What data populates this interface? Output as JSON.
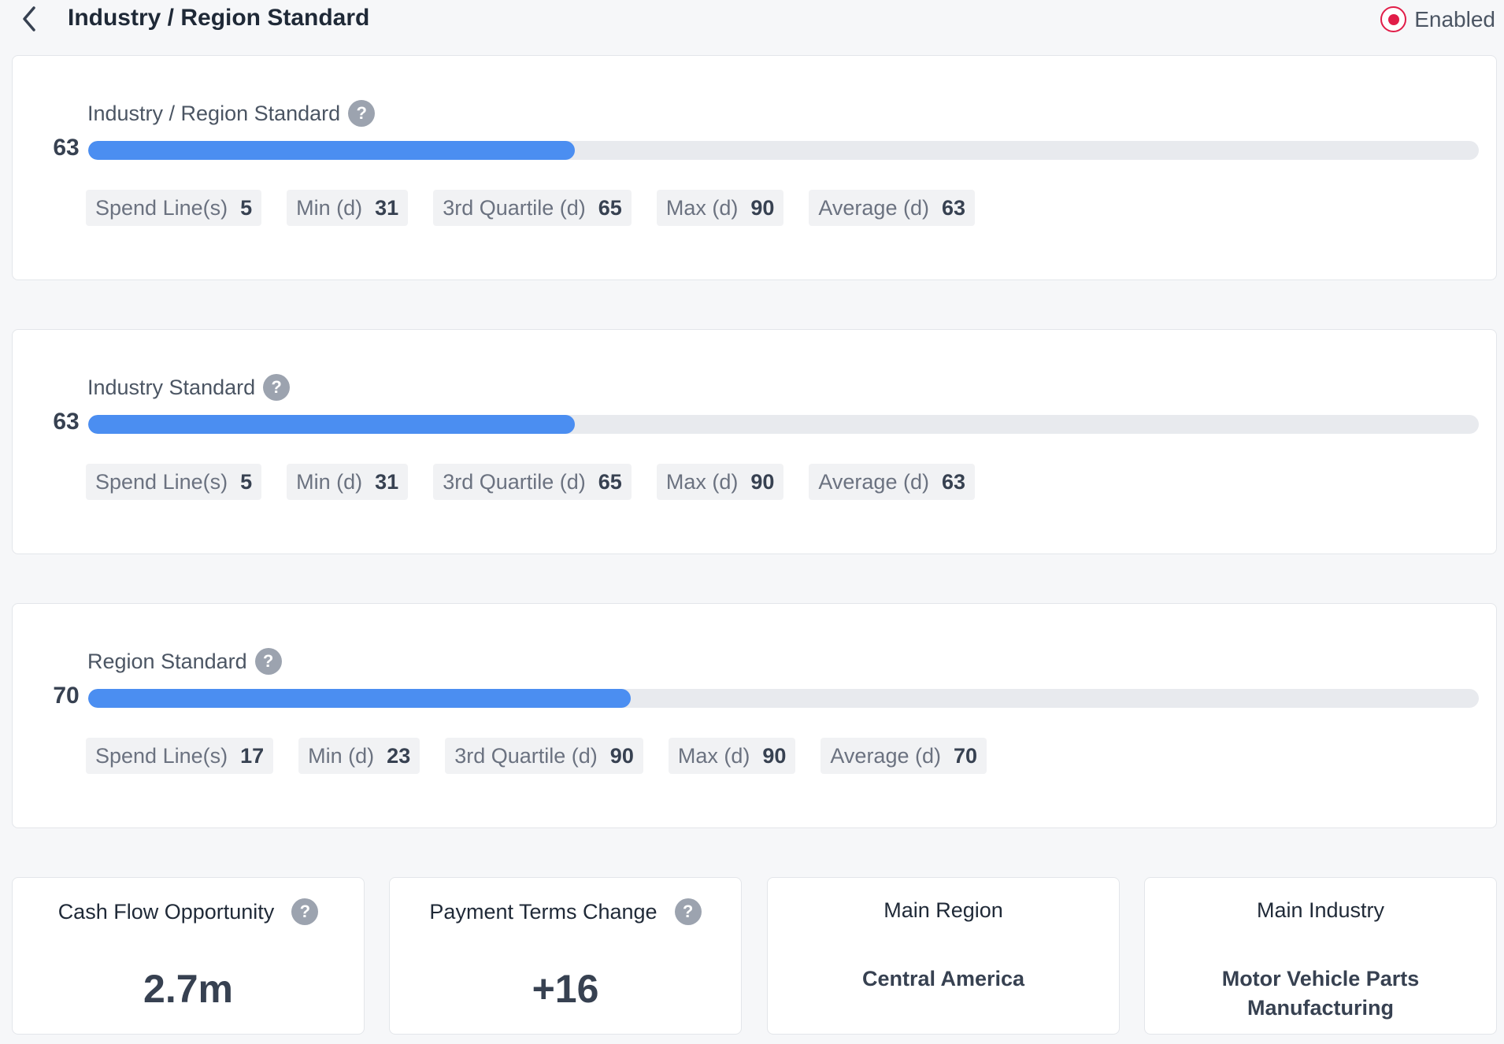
{
  "header": {
    "title": "Industry / Region Standard",
    "status_label": "Enabled",
    "back_icon": "chevron-left-icon"
  },
  "colors": {
    "accent": "#4b8ef1",
    "track": "#e8eaee",
    "status": "#e11d48"
  },
  "standards": [
    {
      "label": "Industry / Region Standard",
      "score": "63",
      "progress_fraction": 0.35,
      "stats": [
        {
          "label": "Spend Line(s)",
          "value": "5"
        },
        {
          "label": "Min (d)",
          "value": "31"
        },
        {
          "label": "3rd Quartile (d)",
          "value": "65"
        },
        {
          "label": "Max (d)",
          "value": "90"
        },
        {
          "label": "Average (d)",
          "value": "63"
        }
      ]
    },
    {
      "label": "Industry Standard",
      "score": "63",
      "progress_fraction": 0.35,
      "stats": [
        {
          "label": "Spend Line(s)",
          "value": "5"
        },
        {
          "label": "Min (d)",
          "value": "31"
        },
        {
          "label": "3rd Quartile (d)",
          "value": "65"
        },
        {
          "label": "Max (d)",
          "value": "90"
        },
        {
          "label": "Average (d)",
          "value": "63"
        }
      ]
    },
    {
      "label": "Region Standard",
      "score": "70",
      "progress_fraction": 0.39,
      "stats": [
        {
          "label": "Spend Line(s)",
          "value": "17"
        },
        {
          "label": "Min (d)",
          "value": "23"
        },
        {
          "label": "3rd Quartile (d)",
          "value": "90"
        },
        {
          "label": "Max (d)",
          "value": "90"
        },
        {
          "label": "Average (d)",
          "value": "70"
        }
      ]
    }
  ],
  "kpis": {
    "cash_flow": {
      "label": "Cash Flow Opportunity",
      "value": "2.7m"
    },
    "payment_terms": {
      "label": "Payment Terms Change",
      "value": "+16"
    },
    "main_region": {
      "label": "Main Region",
      "value": "Central America"
    },
    "main_industry": {
      "label": "Main Industry",
      "value": "Motor Vehicle Parts Manufacturing"
    }
  }
}
